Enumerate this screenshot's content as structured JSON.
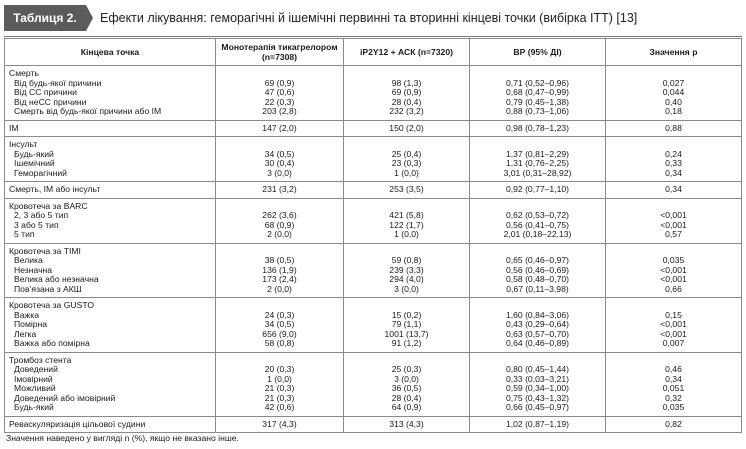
{
  "title": {
    "badge": "Таблиця 2.",
    "text": "Ефекти лікування: геморагічні й ішемічні первинні та вторинні кінцеві точки (вибірка ІТТ) [13]"
  },
  "headers": [
    "Кінцева точка",
    "Монотерапія тикагрелором (n=7308)",
    "іP2Y12 + АСК (n=7320)",
    "ВР (95% ДІ)",
    "Значення р"
  ],
  "rows": [
    {
      "label": "Смерть",
      "sub": false,
      "mono": "",
      "dual": "",
      "hr": "",
      "p": ""
    },
    {
      "label": "Від будь-якої причини",
      "sub": true,
      "mono": "69 (0,9)",
      "dual": "98 (1,3)",
      "hr": "0,71 (0,52–0,96)",
      "p": "0,027"
    },
    {
      "label": "Від СС причини",
      "sub": true,
      "mono": "47 (0,6)",
      "dual": "69 (0,9)",
      "hr": "0,68 (0,47–0,99)",
      "p": "0,044"
    },
    {
      "label": "Від неСС причини",
      "sub": true,
      "mono": "22 (0,3)",
      "dual": "28 (0,4)",
      "hr": "0,79 (0,45–1,38)",
      "p": "0,40"
    },
    {
      "label": "Смерть від будь-якої причини або ІМ",
      "sub": true,
      "mono": "203 (2,8)",
      "dual": "232 (3,2)",
      "hr": "0,88 (0,73–1,06)",
      "p": "0,18"
    },
    {
      "label": "ІМ",
      "sub": false,
      "mono": "147 (2,0)",
      "dual": "150 (2,0)",
      "hr": "0,98 (0,78–1,23)",
      "p": "0,88"
    },
    {
      "label": "Інсульт",
      "sub": false,
      "mono": "",
      "dual": "",
      "hr": "",
      "p": ""
    },
    {
      "label": "Будь-який",
      "sub": true,
      "mono": "34 (0,5)",
      "dual": "25 (0,4)",
      "hr": "1,37 (0,81–2,29)",
      "p": "0,24"
    },
    {
      "label": "Ішемічний",
      "sub": true,
      "mono": "30 (0,4)",
      "dual": "23 (0,3)",
      "hr": "1,31 (0,76–2,25)",
      "p": "0,33"
    },
    {
      "label": "Геморагічний",
      "sub": true,
      "mono": "3 (0,0)",
      "dual": "1 (0,0)",
      "hr": "3,01 (0,31–28,92)",
      "p": "0,34"
    },
    {
      "label": "Смерть, ІМ або інсульт",
      "sub": false,
      "mono": "231 (3,2)",
      "dual": "253 (3,5)",
      "hr": "0,92 (0,77–1,10)",
      "p": "0,34"
    },
    {
      "label": "Кровотеча за BARC",
      "sub": false,
      "mono": "",
      "dual": "",
      "hr": "",
      "p": ""
    },
    {
      "label": "2, 3 або 5 тип",
      "sub": true,
      "mono": "262 (3,6)",
      "dual": "421 (5,8)",
      "hr": "0,62 (0,53–0,72)",
      "p": "<0,001"
    },
    {
      "label": "3 або 5 тип",
      "sub": true,
      "mono": "68 (0,9)",
      "dual": "122 (1,7)",
      "hr": "0,56 (0,41–0,75)",
      "p": "<0,001"
    },
    {
      "label": "5 тип",
      "sub": true,
      "mono": "2 (0,0)",
      "dual": "1 (0,0)",
      "hr": "2,01 (0,18–22,13)",
      "p": "0,57"
    },
    {
      "label": "Кровотеча за TIMI",
      "sub": false,
      "mono": "",
      "dual": "",
      "hr": "",
      "p": ""
    },
    {
      "label": "Велика",
      "sub": true,
      "mono": "38 (0,5)",
      "dual": "59 (0,8)",
      "hr": "0,65 (0,46–0,97)",
      "p": "0,035"
    },
    {
      "label": "Незначна",
      "sub": true,
      "mono": "136 (1,9)",
      "dual": "239 (3,3)",
      "hr": "0,56 (0,46–0,69)",
      "p": "<0,001"
    },
    {
      "label": "Велика або незначна",
      "sub": true,
      "mono": "173 (2,4)",
      "dual": "294 (4,0)",
      "hr": "0,58 (0,48–0,70)",
      "p": "<0,001"
    },
    {
      "label": "Пов’язана з АКШ",
      "sub": true,
      "mono": "2 (0,0)",
      "dual": "3 (0,0)",
      "hr": "0,67 (0,11–3,98)",
      "p": "0,66"
    },
    {
      "label": "Кровотеча за GUSTO",
      "sub": false,
      "mono": "",
      "dual": "",
      "hr": "",
      "p": ""
    },
    {
      "label": "Важка",
      "sub": true,
      "mono": "24 (0,3)",
      "dual": "15 (0,2)",
      "hr": "1,60 (0,84–3,06)",
      "p": "0,15"
    },
    {
      "label": "Помірна",
      "sub": true,
      "mono": "34 (0,5)",
      "dual": "79 (1,1)",
      "hr": "0,43 (0,29–0,64)",
      "p": "<0,001"
    },
    {
      "label": "Легка",
      "sub": true,
      "mono": "656 (9,0)",
      "dual": "1001 (13,7)",
      "hr": "0,63 (0,57–0,70)",
      "p": "<0,001"
    },
    {
      "label": "Важка або помірна",
      "sub": true,
      "mono": "58 (0,8)",
      "dual": "91 (1,2)",
      "hr": "0,64 (0,46–0,89)",
      "p": "0,007"
    },
    {
      "label": "Тромбоз стента",
      "sub": false,
      "mono": "",
      "dual": "",
      "hr": "",
      "p": ""
    },
    {
      "label": "Доведений",
      "sub": true,
      "mono": "20 (0,3)",
      "dual": "25 (0,3)",
      "hr": "0,80 (0,45–1,44)",
      "p": "0,46"
    },
    {
      "label": "Імовірний",
      "sub": true,
      "mono": "1 (0,0)",
      "dual": "3 (0,0)",
      "hr": "0,33 (0,03–3,21)",
      "p": "0,34"
    },
    {
      "label": "Можливий",
      "sub": true,
      "mono": "21 (0,3)",
      "dual": "36 (0,5)",
      "hr": "0,59 (0,34–1,00)",
      "p": "0,051"
    },
    {
      "label": "Доведений або імовірний",
      "sub": true,
      "mono": "21 (0,3)",
      "dual": "28 (0,4)",
      "hr": "0,75 (0,43–1,32)",
      "p": "0,32"
    },
    {
      "label": "Будь-який",
      "sub": true,
      "mono": "42 (0,6)",
      "dual": "64 (0,9)",
      "hr": "0,66 (0,45–0,97)",
      "p": "0,035"
    },
    {
      "label": "Реваскуляризація цільової судини",
      "sub": false,
      "mono": "317 (4,3)",
      "dual": "313 (4,3)",
      "hr": "1,02 (0,87–1,19)",
      "p": "0,82"
    }
  ],
  "footnote": "Значення наведено у вигляді n (%), якщо не вказано інше."
}
